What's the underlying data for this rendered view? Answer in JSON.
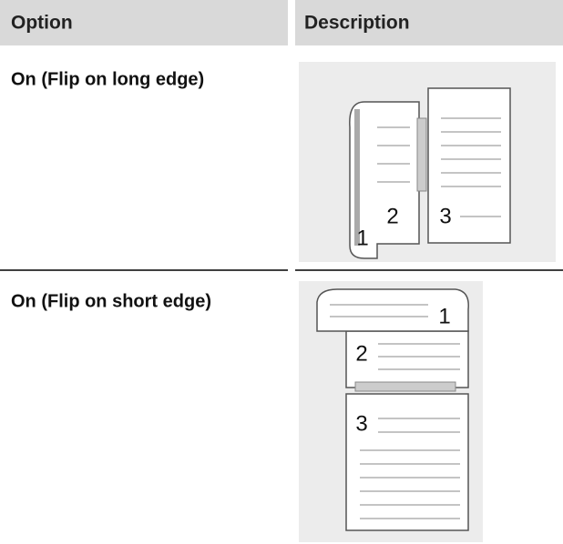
{
  "table": {
    "header": [
      "Option",
      "Description"
    ],
    "rows": [
      {
        "option": "On (Flip on long edge)",
        "figure_labels": [
          "1",
          "2",
          "3"
        ]
      },
      {
        "option": "On (Flip on short edge)",
        "figure_labels": [
          "1",
          "2",
          "3"
        ]
      }
    ]
  }
}
